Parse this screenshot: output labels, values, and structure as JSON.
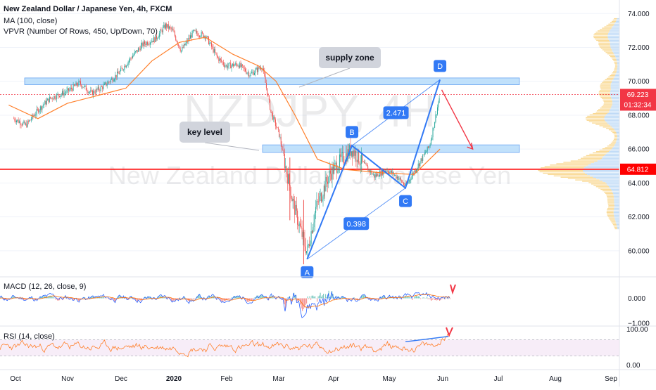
{
  "chart_data": {
    "type": "candlestick",
    "title": "New Zealand Dollar / Japanese Yen, 4h, FXCM",
    "watermark": {
      "symbol": "NZDJPY, 4H",
      "name": "New Zealand Dollar / Japanese Yen"
    },
    "indicators": {
      "ma": "MA (100, close)",
      "vpvr": "VPVR (Number Of Rows, 450, Up/Down, 70)",
      "macd": "MACD (12, 26, close, 9)",
      "rsi": "RSI (14, close)"
    },
    "price_axis": {
      "ticks": [
        "74.000",
        "72.000",
        "70.000",
        "68.000",
        "66.000",
        "64.000",
        "62.000",
        "60.000"
      ],
      "range": [
        58.5,
        74.8
      ]
    },
    "macd_axis": {
      "ticks": [
        "0.000",
        "−1.000"
      ]
    },
    "rsi_axis": {
      "ticks": [
        "100.00",
        "0.00"
      ]
    },
    "time_axis": [
      "Oct",
      "Nov",
      "Dec",
      "2020",
      "Feb",
      "Mar",
      "Apr",
      "May",
      "Jun",
      "Jul",
      "Aug",
      "Sep"
    ],
    "current_price": "69.223",
    "countdown": "01:32:34",
    "marked_level": "64.812",
    "zones": [
      {
        "name": "supply zone",
        "low": 69.8,
        "high": 70.2
      },
      {
        "name": "key level",
        "low": 65.8,
        "high": 66.25
      }
    ],
    "harmonic_points": [
      {
        "label": "A",
        "date": "2020-03-19",
        "price": 59.5
      },
      {
        "label": "B",
        "date": "2020-04-14",
        "price": 66.2
      },
      {
        "label": "C",
        "date": "2020-05-15",
        "price": 63.7
      },
      {
        "label": "D",
        "date": "2020-06-04",
        "price": 70.1
      }
    ],
    "ratios": [
      {
        "value": "2.471",
        "from": "B",
        "to": "D"
      },
      {
        "value": "0.398",
        "from": "A",
        "to": "C"
      }
    ],
    "annotations": [
      "supply zone",
      "key level"
    ],
    "ohlc_path": [
      [
        "2019-10-01",
        67.8
      ],
      [
        "2019-10-08",
        67.4
      ],
      [
        "2019-10-15",
        68.3
      ],
      [
        "2019-10-22",
        69.0
      ],
      [
        "2019-11-01",
        69.4
      ],
      [
        "2019-11-08",
        69.9
      ],
      [
        "2019-11-15",
        69.3
      ],
      [
        "2019-11-22",
        69.7
      ],
      [
        "2019-12-01",
        70.5
      ],
      [
        "2019-12-08",
        71.4
      ],
      [
        "2019-12-15",
        72.2
      ],
      [
        "2019-12-22",
        72.5
      ],
      [
        "2019-12-28",
        73.3
      ],
      [
        "2020-01-01",
        73.0
      ],
      [
        "2020-01-06",
        71.8
      ],
      [
        "2020-01-13",
        72.9
      ],
      [
        "2020-01-20",
        72.7
      ],
      [
        "2020-01-27",
        71.4
      ],
      [
        "2020-02-01",
        70.9
      ],
      [
        "2020-02-08",
        71.0
      ],
      [
        "2020-02-15",
        70.4
      ],
      [
        "2020-02-22",
        70.9
      ],
      [
        "2020-02-27",
        68.2
      ],
      [
        "2020-03-03",
        66.8
      ],
      [
        "2020-03-06",
        65.2
      ],
      [
        "2020-03-10",
        63.2
      ],
      [
        "2020-03-13",
        62.0
      ],
      [
        "2020-03-19",
        59.9
      ],
      [
        "2020-03-24",
        62.5
      ],
      [
        "2020-04-01",
        64.5
      ],
      [
        "2020-04-08",
        65.4
      ],
      [
        "2020-04-14",
        66.0
      ],
      [
        "2020-04-20",
        65.2
      ],
      [
        "2020-04-27",
        64.4
      ],
      [
        "2020-05-04",
        64.8
      ],
      [
        "2020-05-11",
        64.3
      ],
      [
        "2020-05-15",
        63.8
      ],
      [
        "2020-05-22",
        65.0
      ],
      [
        "2020-05-29",
        66.2
      ],
      [
        "2020-06-04",
        69.2
      ]
    ],
    "ma_path": [
      [
        "2019-09-28",
        68.6
      ],
      [
        "2019-10-15",
        67.8
      ],
      [
        "2019-11-01",
        68.7
      ],
      [
        "2019-11-20",
        69.2
      ],
      [
        "2019-12-05",
        69.6
      ],
      [
        "2019-12-20",
        71.2
      ],
      [
        "2020-01-05",
        72.3
      ],
      [
        "2020-01-20",
        72.6
      ],
      [
        "2020-02-05",
        71.6
      ],
      [
        "2020-02-20",
        70.9
      ],
      [
        "2020-03-01",
        70.0
      ],
      [
        "2020-03-12",
        68.0
      ],
      [
        "2020-03-25",
        65.4
      ],
      [
        "2020-04-10",
        64.8
      ],
      [
        "2020-05-01",
        64.6
      ],
      [
        "2020-05-20",
        64.5
      ],
      [
        "2020-06-04",
        66.0
      ]
    ],
    "rsi_trendline": [
      [
        "2020-05-15",
        65
      ],
      [
        "2020-06-04",
        78
      ]
    ],
    "projection_arrow": [
      [
        "2020-06-05",
        69.5
      ],
      [
        "2020-06-23",
        66.0
      ]
    ],
    "colors": {
      "up": "#26a69a",
      "down": "#ef5350",
      "ma": "#ff7f2a",
      "zone": "#bbdefb",
      "pattern": "#3179f5",
      "level": "#ff0000",
      "price": "#f23645",
      "arrow": "#f23645",
      "rsi": "#ff7f2a",
      "vol_up": "#f9d27e",
      "vol_down": "#b3d4f5"
    }
  }
}
